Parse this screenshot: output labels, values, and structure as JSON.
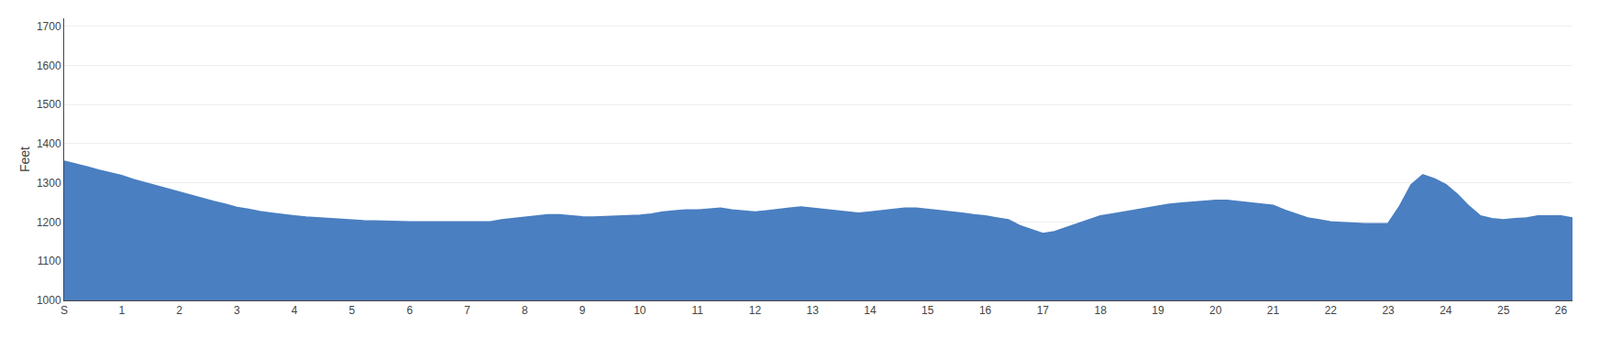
{
  "chart_data": {
    "type": "area",
    "ylabel": "Feet",
    "x": [
      0,
      0.2,
      0.4,
      0.6,
      0.8,
      1.0,
      1.2,
      1.4,
      1.6,
      1.8,
      2.0,
      2.2,
      2.4,
      2.6,
      2.8,
      3.0,
      3.2,
      3.4,
      3.6,
      3.8,
      4.0,
      4.2,
      4.4,
      4.6,
      4.8,
      5.0,
      5.2,
      5.4,
      5.6,
      5.8,
      6.0,
      6.2,
      6.4,
      6.6,
      6.8,
      7.0,
      7.2,
      7.4,
      7.6,
      7.8,
      8.0,
      8.2,
      8.4,
      8.6,
      8.8,
      9.0,
      9.2,
      9.4,
      9.6,
      9.8,
      10.0,
      10.2,
      10.4,
      10.6,
      10.8,
      11.0,
      11.2,
      11.4,
      11.6,
      11.8,
      12.0,
      12.2,
      12.4,
      12.6,
      12.8,
      13.0,
      13.2,
      13.4,
      13.6,
      13.8,
      14.0,
      14.2,
      14.4,
      14.6,
      14.8,
      15.0,
      15.2,
      15.4,
      15.6,
      15.8,
      16.0,
      16.2,
      16.4,
      16.6,
      16.8,
      17.0,
      17.2,
      17.4,
      17.6,
      17.8,
      18.0,
      18.2,
      18.4,
      18.6,
      18.8,
      19.0,
      19.2,
      19.4,
      19.6,
      19.8,
      20.0,
      20.2,
      20.4,
      20.6,
      20.8,
      21.0,
      21.2,
      21.4,
      21.6,
      21.8,
      22.0,
      22.2,
      22.4,
      22.6,
      22.8,
      23.0,
      23.2,
      23.4,
      23.6,
      23.8,
      24.0,
      24.2,
      24.4,
      24.6,
      24.8,
      25.0,
      25.2,
      25.4,
      25.6,
      25.8,
      26.0,
      26.2
    ],
    "values": [
      1355,
      1348,
      1340,
      1332,
      1325,
      1318,
      1308,
      1300,
      1292,
      1283,
      1275,
      1268,
      1260,
      1252,
      1245,
      1237,
      1232,
      1226,
      1222,
      1218,
      1215,
      1212,
      1210,
      1208,
      1206,
      1204,
      1203,
      1202,
      1201,
      1200,
      1200,
      1200,
      1200,
      1200,
      1200,
      1200,
      1200,
      1200,
      1205,
      1208,
      1212,
      1215,
      1218,
      1218,
      1215,
      1213,
      1212,
      1213,
      1215,
      1216,
      1217,
      1220,
      1225,
      1228,
      1230,
      1230,
      1232,
      1235,
      1230,
      1228,
      1225,
      1228,
      1232,
      1235,
      1238,
      1235,
      1232,
      1228,
      1225,
      1222,
      1225,
      1228,
      1232,
      1235,
      1235,
      1232,
      1228,
      1225,
      1222,
      1218,
      1215,
      1210,
      1205,
      1190,
      1180,
      1170,
      1175,
      1185,
      1195,
      1205,
      1215,
      1220,
      1225,
      1230,
      1235,
      1240,
      1245,
      1248,
      1250,
      1252,
      1255,
      1255,
      1252,
      1248,
      1245,
      1242,
      1230,
      1220,
      1210,
      1205,
      1200,
      1198,
      1196,
      1195,
      1195,
      1196,
      1240,
      1295,
      1320,
      1310,
      1295,
      1270,
      1240,
      1215,
      1208,
      1205,
      1208,
      1210,
      1215,
      1215,
      1215,
      1210
    ],
    "color": "#4a7fc1",
    "xlim": [
      0,
      26.2
    ],
    "xticks": [
      {
        "value": 0,
        "label": "S"
      },
      1,
      2,
      3,
      4,
      5,
      6,
      7,
      8,
      9,
      10,
      11,
      12,
      13,
      14,
      15,
      16,
      17,
      18,
      19,
      20,
      21,
      22,
      23,
      24,
      25,
      26
    ],
    "ylim": [
      1000,
      1720
    ],
    "yticks": [
      1000,
      1100,
      1200,
      1300,
      1400,
      1500,
      1600,
      1700
    ],
    "grid": "y"
  }
}
